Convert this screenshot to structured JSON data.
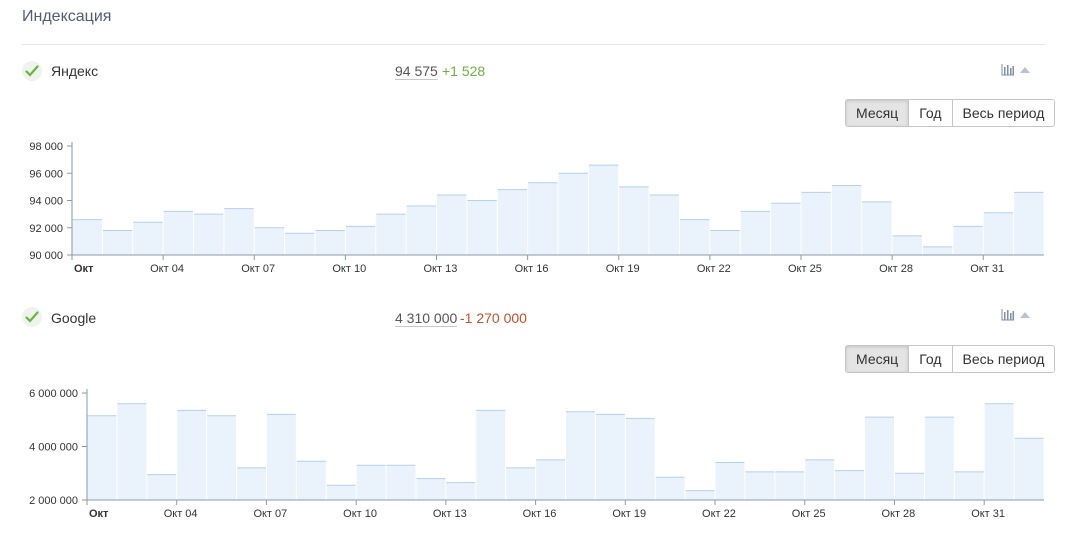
{
  "page": {
    "title": "Индексация"
  },
  "periods": [
    "Месяц",
    "Год",
    "Весь период"
  ],
  "colors": {
    "bar_fill": "#eaf3fc",
    "bar_stroke": "#b5d0ea",
    "positive": "#6db33f",
    "negative": "#c8502c",
    "check": "#6db33f"
  },
  "icons": {
    "check": "check-icon",
    "chart": "bar-chart-icon",
    "collapse": "collapse-triangle-icon"
  },
  "sections": [
    {
      "name": "Яндекс",
      "value": "94 575",
      "delta": "+1 528",
      "delta_sign": "positive",
      "active_period": "Месяц",
      "chart_data": {
        "type": "bar",
        "x_ticks": [
          "Окт",
          "Окт 04",
          "Окт 07",
          "Окт 10",
          "Окт 13",
          "Окт 16",
          "Окт 19",
          "Окт 22",
          "Окт 25",
          "Окт 28",
          "Окт 31"
        ],
        "y_ticks": [
          "90 000",
          "92 000",
          "94 000",
          "96 000",
          "98 000"
        ],
        "ylim": [
          90000,
          98000
        ],
        "values": [
          92600,
          91800,
          92400,
          93200,
          93000,
          93400,
          92000,
          91600,
          91800,
          92100,
          93000,
          93600,
          94400,
          94000,
          94800,
          95300,
          96000,
          96600,
          95000,
          94400,
          92600,
          91800,
          93200,
          93800,
          94600,
          95100,
          93900,
          91400,
          90600,
          92100,
          93100,
          94600
        ]
      }
    },
    {
      "name": "Google",
      "value": "4 310 000",
      "delta": "-1 270 000",
      "delta_sign": "negative",
      "active_period": "Месяц",
      "chart_data": {
        "type": "bar",
        "x_ticks": [
          "Окт",
          "Окт 04",
          "Окт 07",
          "Окт 10",
          "Окт 13",
          "Окт 16",
          "Окт 19",
          "Окт 22",
          "Окт 25",
          "Окт 28",
          "Окт 31"
        ],
        "y_ticks": [
          "2 000 000",
          "4 000 000",
          "6 000 000"
        ],
        "ylim": [
          2000000,
          6000000
        ],
        "values": [
          5150000,
          5600000,
          2950000,
          5350000,
          5150000,
          3200000,
          5200000,
          3450000,
          2550000,
          3300000,
          3300000,
          2800000,
          2650000,
          5350000,
          3200000,
          3500000,
          5300000,
          5200000,
          5050000,
          2850000,
          2350000,
          3400000,
          3050000,
          3050000,
          3500000,
          3100000,
          5100000,
          3000000,
          5100000,
          3050000,
          5600000,
          4310000
        ]
      }
    }
  ]
}
